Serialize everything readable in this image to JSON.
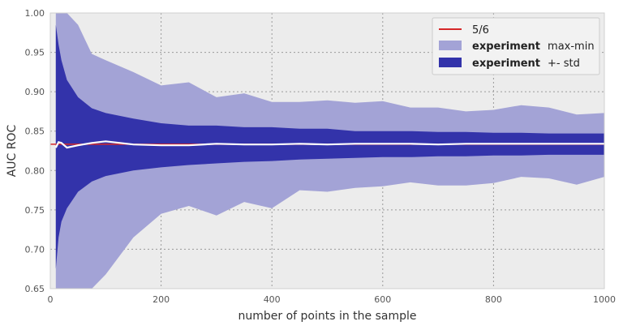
{
  "chart_data": {
    "type": "area",
    "title": "",
    "xlabel": "number of points in the sample",
    "ylabel": "AUC ROC",
    "xlim": [
      0,
      1000
    ],
    "ylim": [
      0.65,
      1.0
    ],
    "xticks": [
      0,
      200,
      400,
      600,
      800,
      1000
    ],
    "xtick_labels": [
      "0",
      "200",
      "400",
      "600",
      "800",
      "1000"
    ],
    "yticks": [
      0.65,
      0.7,
      0.75,
      0.8,
      0.85,
      0.9,
      0.95,
      1.0
    ],
    "ytick_labels": [
      "0.65",
      "0.70",
      "0.75",
      "0.80",
      "0.85",
      "0.90",
      "0.95",
      "1.00"
    ],
    "grid": true,
    "legend_position": "top-right",
    "reference_line": {
      "label": "5/6",
      "value": 0.8333,
      "color": "#d62728"
    },
    "legend": [
      {
        "key": "ref",
        "label": "5/6",
        "bold": "",
        "suffix": ""
      },
      {
        "key": "maxmin",
        "label": "",
        "bold": "experiment",
        "suffix": "max-min"
      },
      {
        "key": "std",
        "label": "",
        "bold": "experiment",
        "suffix": "+- std"
      }
    ],
    "x": [
      10,
      15,
      20,
      30,
      50,
      75,
      100,
      150,
      200,
      250,
      300,
      350,
      400,
      450,
      500,
      550,
      600,
      650,
      700,
      750,
      800,
      850,
      900,
      950,
      1000
    ],
    "series": [
      {
        "key": "maxmin",
        "color": "#a3a3d6",
        "upper": [
          1.0,
          1.0,
          1.0,
          1.0,
          0.985,
          0.948,
          0.94,
          0.925,
          0.908,
          0.912,
          0.893,
          0.898,
          0.887,
          0.887,
          0.889,
          0.886,
          0.888,
          0.88,
          0.88,
          0.875,
          0.877,
          0.883,
          0.88,
          0.871,
          0.873
        ],
        "lower": [
          0.65,
          0.65,
          0.65,
          0.65,
          0.65,
          0.65,
          0.668,
          0.715,
          0.745,
          0.755,
          0.743,
          0.76,
          0.752,
          0.775,
          0.773,
          0.778,
          0.78,
          0.785,
          0.781,
          0.781,
          0.784,
          0.792,
          0.79,
          0.782,
          0.792
        ]
      },
      {
        "key": "std",
        "color": "#3333aa",
        "upper": [
          0.985,
          0.96,
          0.94,
          0.915,
          0.893,
          0.879,
          0.873,
          0.866,
          0.86,
          0.857,
          0.857,
          0.855,
          0.855,
          0.853,
          0.853,
          0.85,
          0.85,
          0.85,
          0.849,
          0.849,
          0.848,
          0.848,
          0.847,
          0.847,
          0.847
        ],
        "lower": [
          0.675,
          0.715,
          0.735,
          0.752,
          0.773,
          0.786,
          0.793,
          0.8,
          0.804,
          0.807,
          0.809,
          0.811,
          0.812,
          0.814,
          0.815,
          0.816,
          0.817,
          0.817,
          0.818,
          0.818,
          0.819,
          0.819,
          0.82,
          0.82,
          0.82
        ]
      },
      {
        "key": "mean",
        "color": "#ffffff",
        "values": [
          0.829,
          0.836,
          0.835,
          0.829,
          0.832,
          0.835,
          0.837,
          0.833,
          0.832,
          0.832,
          0.834,
          0.833,
          0.833,
          0.834,
          0.833,
          0.834,
          0.834,
          0.834,
          0.833,
          0.834,
          0.834,
          0.834,
          0.834,
          0.834,
          0.834
        ]
      }
    ]
  }
}
